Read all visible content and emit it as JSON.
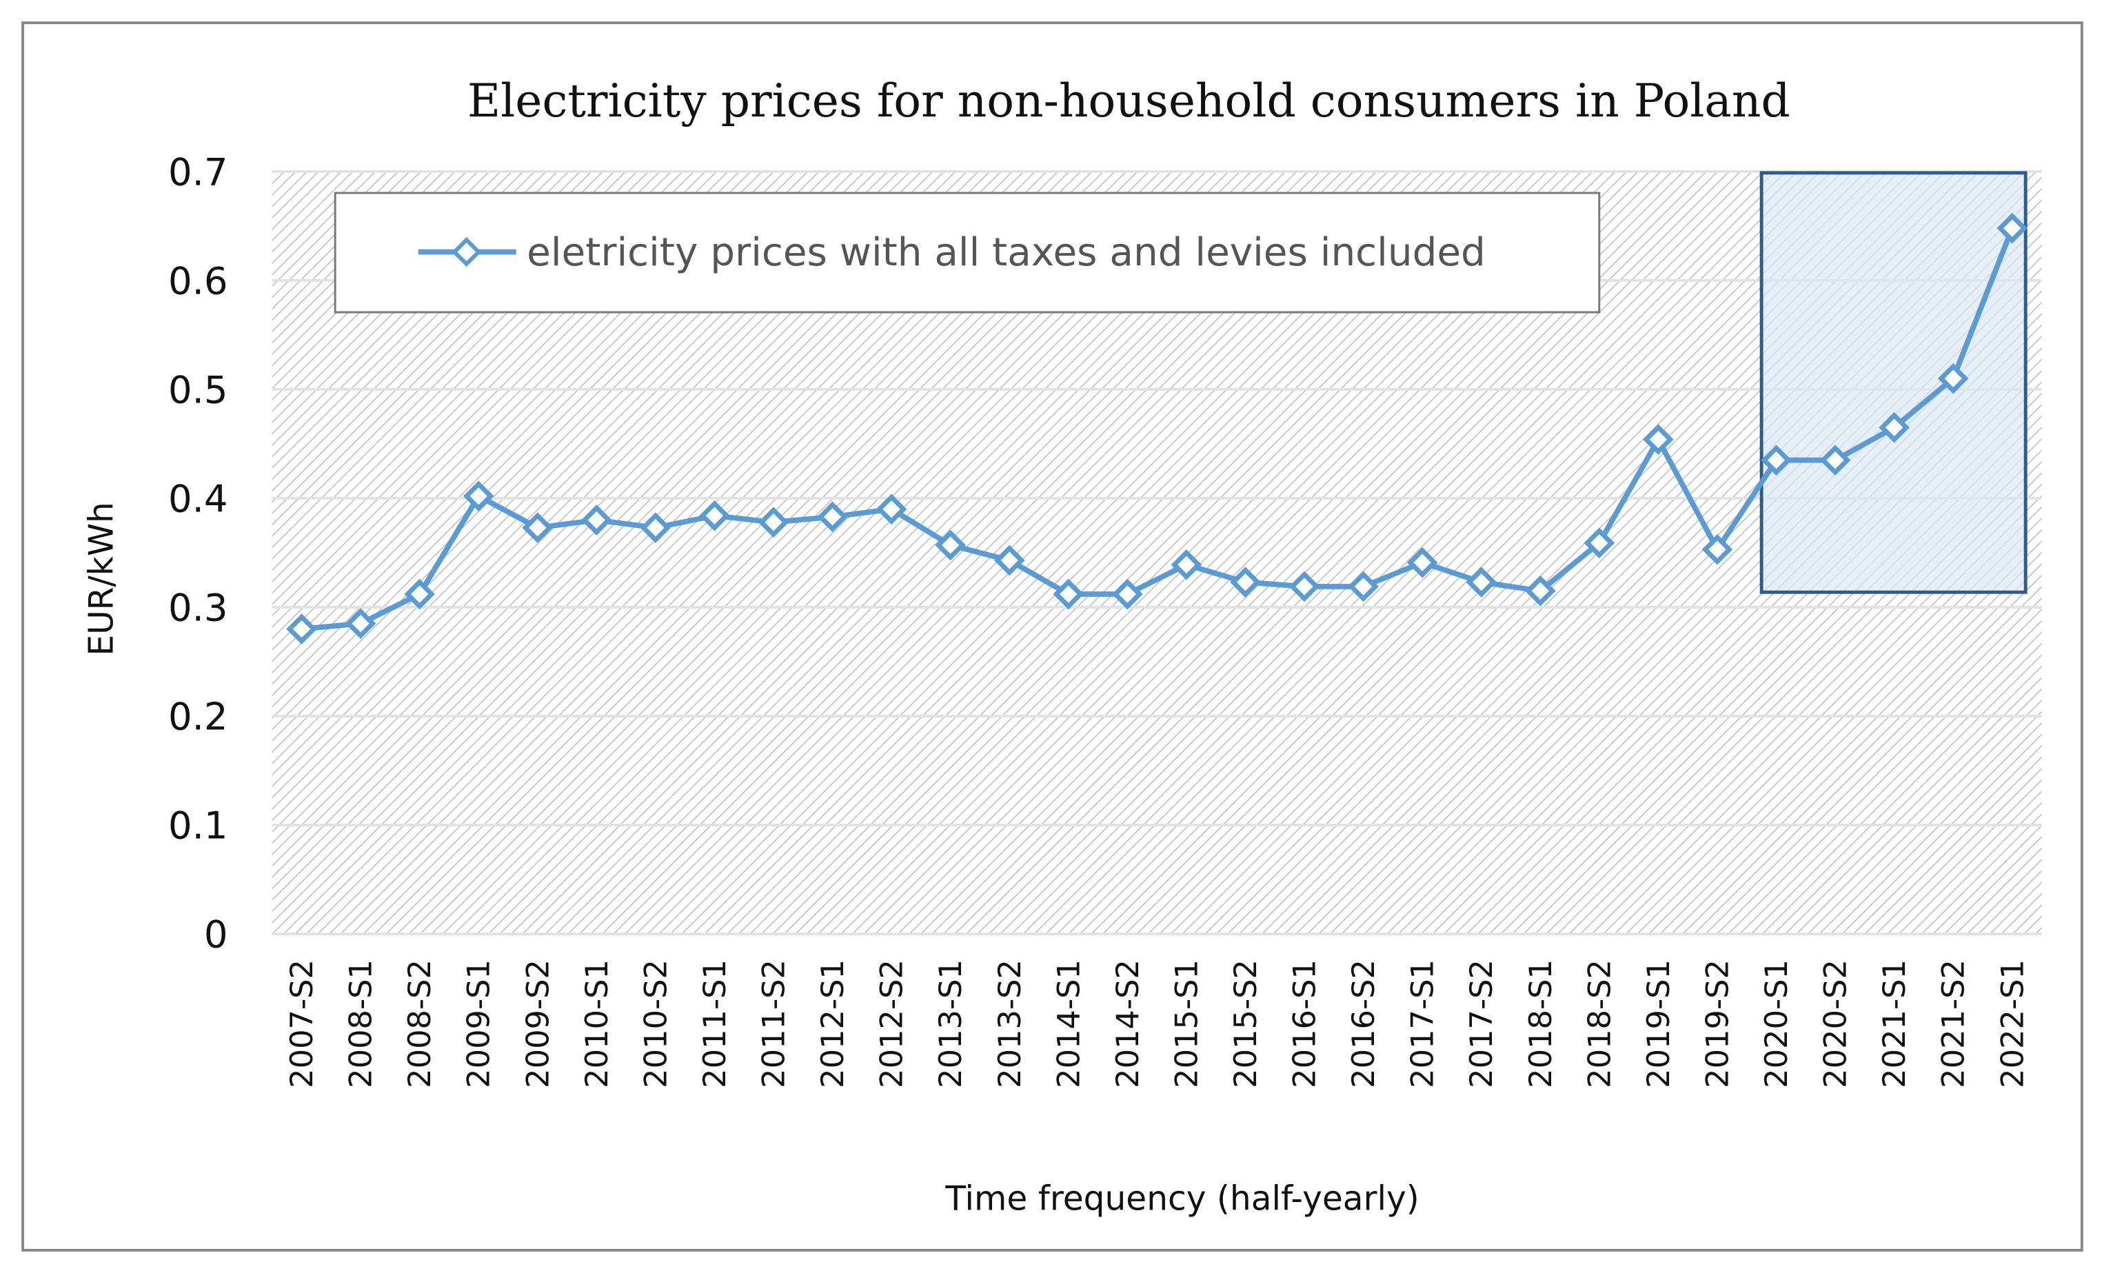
{
  "chart_data": {
    "type": "line",
    "title": "Electricity prices for non-household consumers in Poland",
    "xlabel": "Time frequency (half-yearly)",
    "ylabel": "EUR/kWh",
    "ylim": [
      0,
      0.7
    ],
    "yticks": [
      "0",
      "0.1",
      "0.2",
      "0.3",
      "0.4",
      "0.5",
      "0.6",
      "0.7"
    ],
    "grid": true,
    "legend_placement": "top-left",
    "categories": [
      "2007-S2",
      "2008-S1",
      "2008-S2",
      "2009-S1",
      "2009-S2",
      "2010-S1",
      "2010-S2",
      "2011-S1",
      "2011-S2",
      "2012-S1",
      "2012-S2",
      "2013-S1",
      "2013-S2",
      "2014-S1",
      "2014-S2",
      "2015-S1",
      "2015-S2",
      "2016-S1",
      "2016-S2",
      "2017-S1",
      "2017-S2",
      "2018-S1",
      "2018-S2",
      "2019-S1",
      "2019-S2",
      "2020-S1",
      "2020-S2",
      "2021-S1",
      "2021-S2",
      "2022-S1"
    ],
    "series": [
      {
        "name": "eletricity prices with all taxes and levies included",
        "color": "#5b9bd5",
        "marker": "diamond",
        "values": [
          0.28,
          0.285,
          0.312,
          0.402,
          0.373,
          0.38,
          0.373,
          0.384,
          0.378,
          0.383,
          0.39,
          0.357,
          0.343,
          0.312,
          0.312,
          0.339,
          0.323,
          0.319,
          0.319,
          0.341,
          0.323,
          0.315,
          0.359,
          0.454,
          0.353,
          0.435,
          0.435,
          0.465,
          0.51,
          0.648
        ]
      }
    ],
    "highlight": {
      "from_category": "2020-S1",
      "to_category": "2022-S1",
      "y_range": [
        0.315,
        0.7
      ],
      "fill": "#dbe7f5",
      "stroke": "#2e5c8a"
    }
  }
}
